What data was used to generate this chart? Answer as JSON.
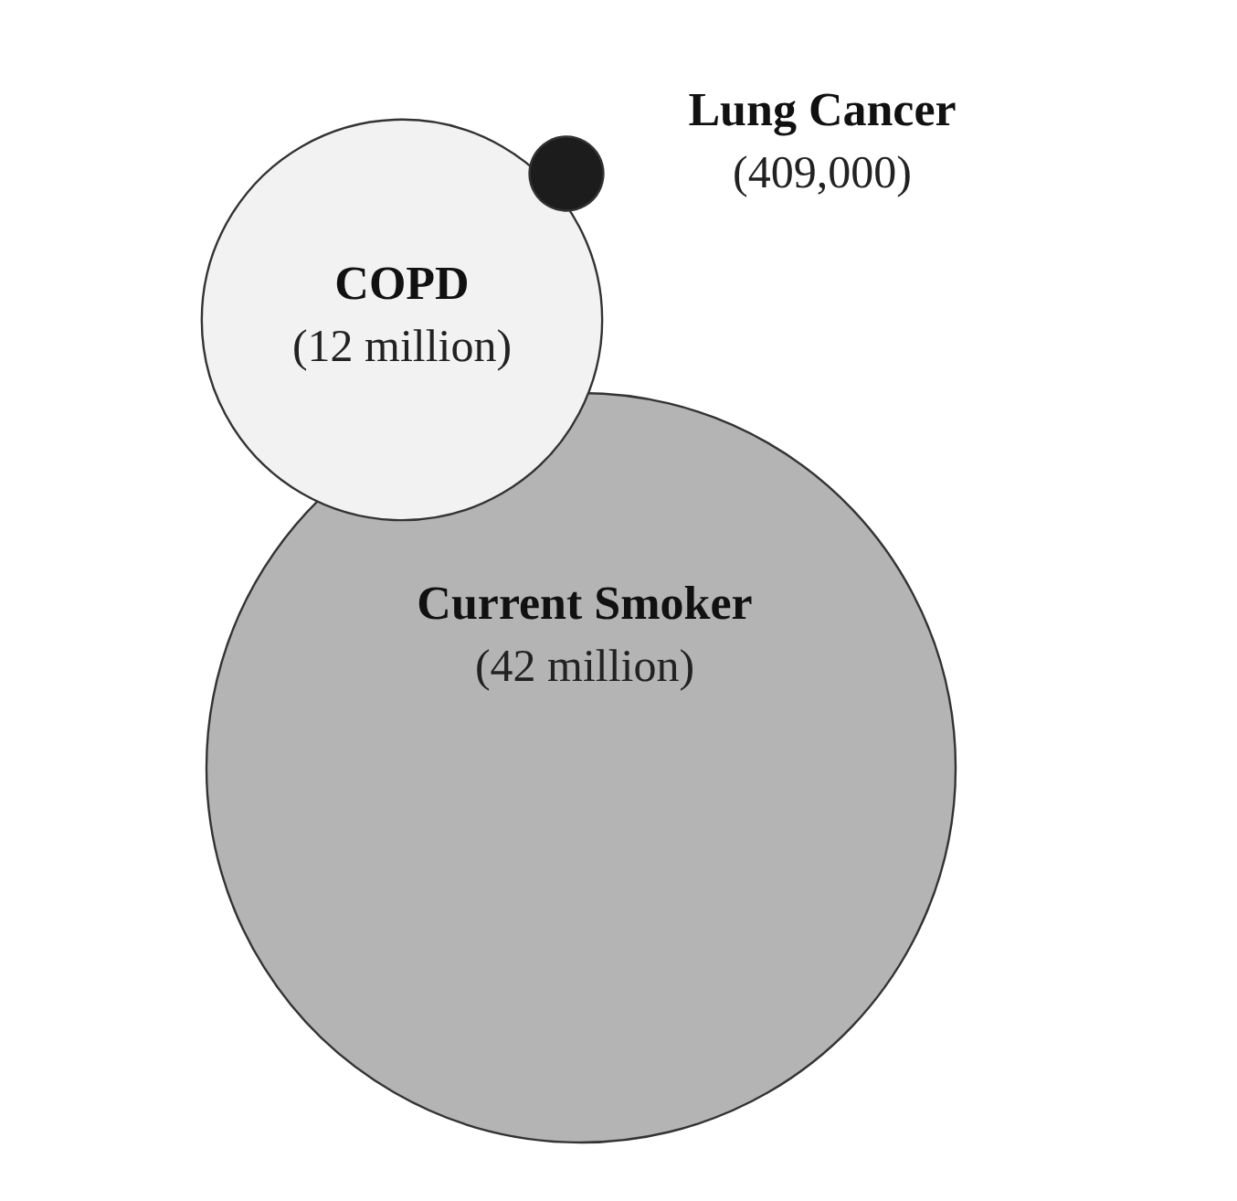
{
  "chart_data": {
    "type": "other",
    "categories": [
      "Current Smoker",
      "COPD",
      "Lung Cancer"
    ],
    "values": [
      42000000,
      12000000,
      409000
    ],
    "value_labels": [
      "(42 million)",
      "(12 million)",
      "(409,000)"
    ],
    "colors": [
      "#b4b4b4",
      "#f2f2f2",
      "#1c1c1c"
    ]
  }
}
